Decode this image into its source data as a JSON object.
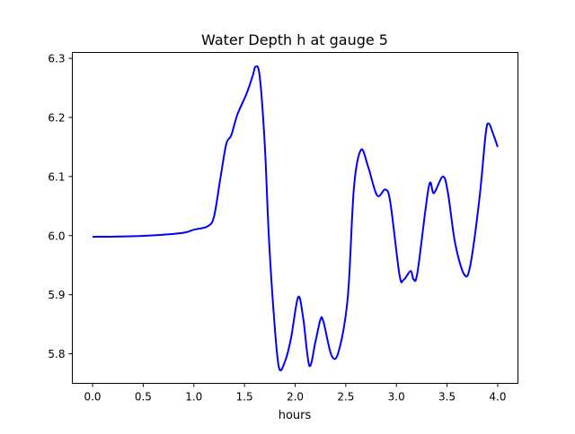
{
  "chart_data": {
    "type": "line",
    "title": "Water Depth h at gauge 5",
    "xlabel": "hours",
    "ylabel": "",
    "xlim": [
      -0.2,
      4.2
    ],
    "ylim": [
      5.75,
      6.31
    ],
    "xticks": [
      0.0,
      0.5,
      1.0,
      1.5,
      2.0,
      2.5,
      3.0,
      3.5,
      4.0
    ],
    "xtick_labels": [
      "0.0",
      "0.5",
      "1.0",
      "1.5",
      "2.0",
      "2.5",
      "3.0",
      "3.5",
      "4.0"
    ],
    "yticks": [
      5.8,
      5.9,
      6.0,
      6.1,
      6.2,
      6.3
    ],
    "ytick_labels": [
      "5.8",
      "5.9",
      "6.0",
      "6.1",
      "6.2",
      "6.3"
    ],
    "grid": false,
    "series": [
      {
        "name": "h",
        "color": "#0000ff",
        "x": [
          0,
          0.42,
          0.86,
          1.0,
          1.14,
          1.2,
          1.26,
          1.32,
          1.37,
          1.43,
          1.52,
          1.58,
          1.61,
          1.65,
          1.7,
          1.74,
          1.79,
          1.84,
          1.9,
          1.96,
          2.03,
          2.08,
          2.14,
          2.2,
          2.25,
          2.28,
          2.36,
          2.43,
          2.52,
          2.58,
          2.65,
          2.72,
          2.81,
          2.89,
          2.94,
          3.03,
          3.07,
          3.14,
          3.17,
          3.21,
          3.32,
          3.37,
          3.46,
          3.51,
          3.58,
          3.67,
          3.73,
          3.82,
          3.88,
          3.91,
          3.96,
          4.0
        ],
        "y": [
          5.998,
          5.999,
          6.004,
          6.01,
          6.016,
          6.033,
          6.095,
          6.155,
          6.17,
          6.205,
          6.24,
          6.27,
          6.286,
          6.27,
          6.155,
          6.0,
          5.865,
          5.777,
          5.787,
          5.827,
          5.896,
          5.86,
          5.78,
          5.82,
          5.858,
          5.854,
          5.797,
          5.804,
          5.896,
          6.08,
          6.145,
          6.117,
          6.068,
          6.078,
          6.056,
          5.934,
          5.925,
          5.94,
          5.926,
          5.94,
          6.083,
          6.072,
          6.1,
          6.071,
          5.987,
          5.934,
          5.95,
          6.063,
          6.17,
          6.19,
          6.17,
          6.15
        ]
      }
    ]
  }
}
